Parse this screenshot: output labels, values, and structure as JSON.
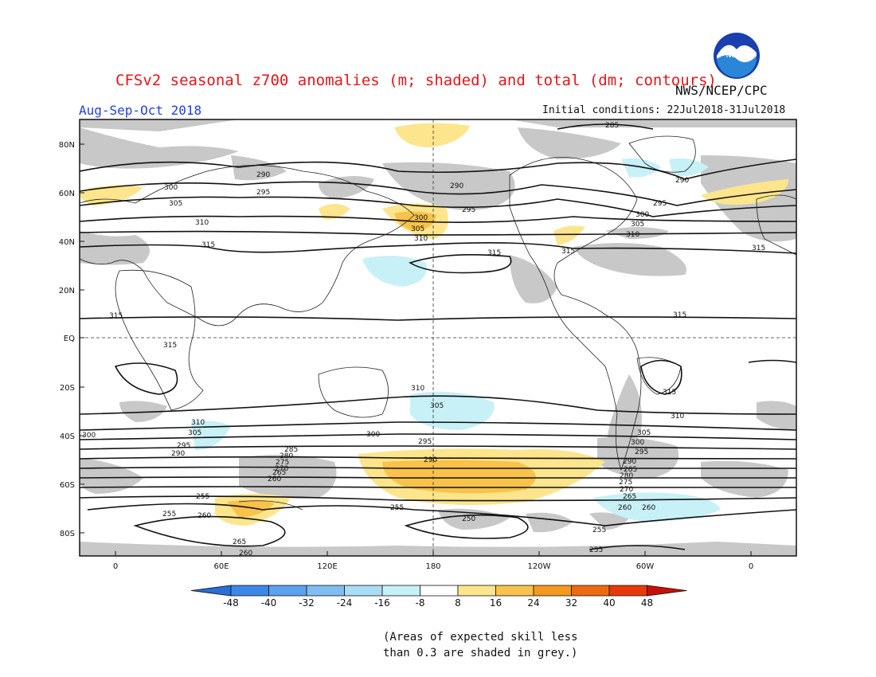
{
  "title": "CFSv2 seasonal z700 anomalies (m; shaded) and total (dm; contours)",
  "agency": "NWS/NCEP/CPC",
  "logo_text": "NOAA",
  "period": "Aug-Sep-Oct 2018",
  "initial_conditions": "Initial conditions: 22Jul2018-31Jul2018",
  "lat_labels": [
    "80N",
    "60N",
    "40N",
    "20N",
    "EQ",
    "20S",
    "40S",
    "60S",
    "80S"
  ],
  "lon_labels": [
    "0",
    "60E",
    "120E",
    "180",
    "120W",
    "60W",
    "0"
  ],
  "colorbar": {
    "ticks": [
      "-48",
      "-40",
      "-32",
      "-24",
      "-16",
      "-8",
      "8",
      "16",
      "24",
      "32",
      "40",
      "48"
    ],
    "colors": [
      "#2a6fd6",
      "#3d87e6",
      "#5aa2ee",
      "#7fbdf3",
      "#a9dcf5",
      "#c8f0f7",
      "#ffffff",
      "#fce58c",
      "#f9c24a",
      "#f39a1e",
      "#ee6a10",
      "#e73a0c",
      "#c8100a"
    ]
  },
  "contour_labels": [
    "285",
    "290",
    "295",
    "300",
    "305",
    "310",
    "315",
    "255",
    "260",
    "265",
    "270",
    "275",
    "280",
    "250"
  ],
  "note_line1": "(Areas of expected skill less",
  "note_line2": "than 0.3 are shaded in grey.)"
}
